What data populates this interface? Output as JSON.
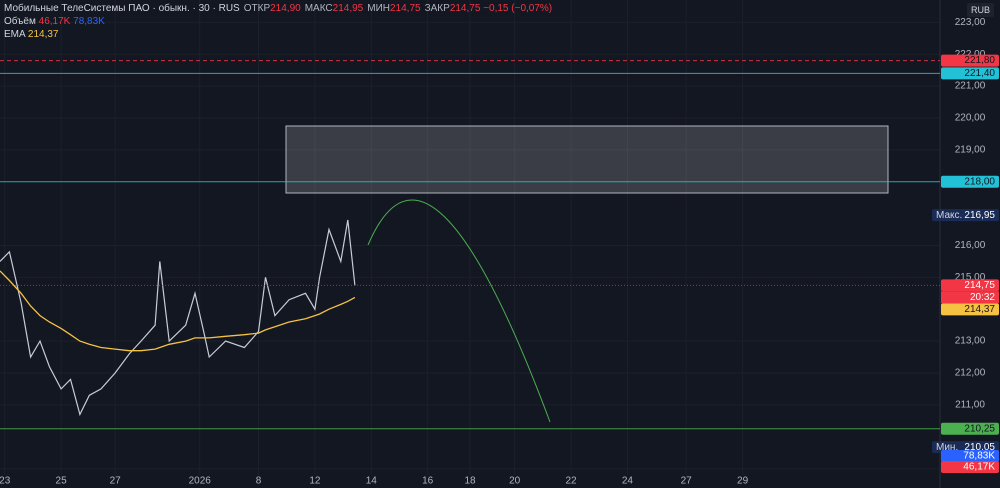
{
  "header": {
    "title": "Мобильные ТелеСистемы ПАО · обыкн. · 30 · RUS",
    "ohlc": [
      {
        "key": "ОТКР",
        "value": "214,90"
      },
      {
        "key": "МАКС",
        "value": "214,95"
      },
      {
        "key": "МИН",
        "value": "214,75"
      },
      {
        "key": "ЗАКР",
        "value": "214,75"
      }
    ],
    "change": "−0,15 (−0,07%)",
    "volume": {
      "label": "Объём",
      "values": [
        "46,17K",
        "78,83K"
      ]
    },
    "ema_value": "214,37"
  },
  "currency": "RUB",
  "chart_data": {
    "type": "line",
    "x": [
      0,
      4,
      9,
      13,
      17,
      21,
      26,
      30,
      34,
      38,
      43,
      49,
      55,
      60,
      66,
      68,
      72,
      79,
      83,
      87,
      89,
      96,
      104,
      110,
      113,
      117,
      123,
      130,
      134,
      136,
      140,
      145,
      148,
      151
    ],
    "xlim": [
      0,
      400
    ],
    "xticks": [
      {
        "value": 2,
        "label": "23"
      },
      {
        "value": 26,
        "label": "25"
      },
      {
        "value": 49,
        "label": "27"
      },
      {
        "value": 85,
        "label": "2026"
      },
      {
        "value": 110,
        "label": "8"
      },
      {
        "value": 134,
        "label": "12"
      },
      {
        "value": 158,
        "label": "14"
      },
      {
        "value": 182,
        "label": "16"
      },
      {
        "value": 200,
        "label": "18"
      },
      {
        "value": 219,
        "label": "20"
      },
      {
        "value": 243,
        "label": "22"
      },
      {
        "value": 267,
        "label": "24"
      },
      {
        "value": 292,
        "label": "27"
      },
      {
        "value": 316,
        "label": "29"
      }
    ],
    "ylim": [
      208.8,
      223.7
    ],
    "yticks": [
      {
        "value": 209,
        "label": "209,00"
      },
      {
        "value": 211,
        "label": "211,00"
      },
      {
        "value": 212,
        "label": "212,00"
      },
      {
        "value": 213,
        "label": "213,00"
      },
      {
        "value": 215,
        "label": "215,00"
      },
      {
        "value": 216,
        "label": "216,00"
      },
      {
        "value": 219,
        "label": "219,00"
      },
      {
        "value": 220,
        "label": "220,00"
      },
      {
        "value": 221,
        "label": "221,00"
      },
      {
        "value": 222,
        "label": "222,00"
      },
      {
        "value": 223,
        "label": "223,00"
      }
    ],
    "grid": true,
    "series": [
      {
        "color": "#c8ccd6",
        "values": [
          215.5,
          215.8,
          214.2,
          212.5,
          213.0,
          212.2,
          211.5,
          211.8,
          210.7,
          211.3,
          211.5,
          212.0,
          212.6,
          213.0,
          213.5,
          215.5,
          213.0,
          213.5,
          214.5,
          213.2,
          212.5,
          213.0,
          212.8,
          213.3,
          215.0,
          213.8,
          214.3,
          214.5,
          214.0,
          215.0,
          216.5,
          215.5,
          216.8,
          214.75
        ]
      },
      {
        "name": "EMA",
        "color": "#f5c242",
        "values": [
          215.2,
          214.9,
          214.5,
          214.1,
          213.8,
          213.6,
          213.4,
          213.2,
          213.0,
          212.9,
          212.8,
          212.75,
          212.7,
          212.7,
          212.75,
          212.8,
          212.9,
          213.0,
          213.1,
          213.1,
          213.1,
          213.15,
          213.2,
          213.25,
          213.35,
          213.45,
          213.6,
          213.7,
          213.8,
          213.85,
          214.0,
          214.15,
          214.25,
          214.37
        ]
      }
    ],
    "levels": [
      {
        "value": 221.8,
        "label": "221,80",
        "color": "#f23645",
        "dashed": true
      },
      {
        "value": 221.4,
        "label": "221,40",
        "color": "#22c1d6",
        "dashed": false
      },
      {
        "value": 218,
        "label": "218,00",
        "color": "#22c1d6",
        "dashed": false
      },
      {
        "value": 210.25,
        "label": "210,25",
        "color": "#4caf50",
        "dashed": false
      }
    ],
    "last_price": {
      "value": 214.75,
      "label": "214,75",
      "timer": "20:32",
      "color": "#f23645"
    },
    "max": {
      "label": "Макс.",
      "value": 216.95,
      "value_label": "216,95"
    },
    "min": {
      "label": "Мин.",
      "value": 210.05,
      "value_label": "210,05"
    }
  }
}
